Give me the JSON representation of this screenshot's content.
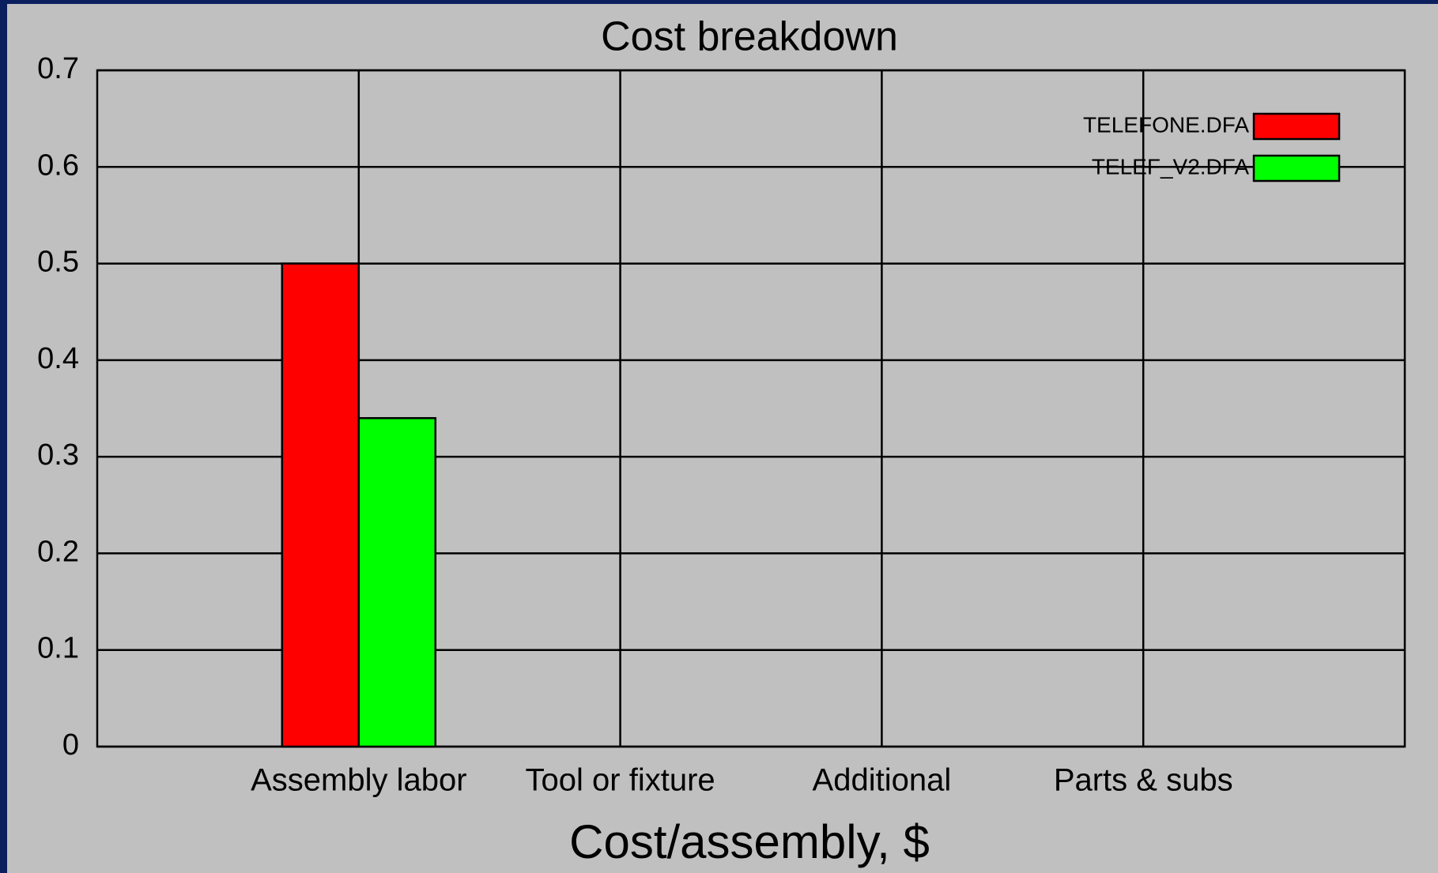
{
  "chart_data": {
    "type": "bar",
    "title": "Cost breakdown",
    "x_label": "Cost/assembly, $",
    "categories": [
      "Assembly labor",
      "Tool or fixture",
      "Additional",
      "Parts & subs"
    ],
    "series": [
      {
        "name": "TELEFONE.DFA",
        "color": "#ff0000",
        "values": [
          0.5,
          0,
          0,
          0
        ]
      },
      {
        "name": "TELEF_V2.DFA",
        "color": "#00ff00",
        "values": [
          0.34,
          0,
          0,
          0
        ]
      }
    ],
    "ylim": [
      0,
      0.7
    ],
    "yticks": [
      0,
      0.1,
      0.2,
      0.3,
      0.4,
      0.5,
      0.6,
      0.7
    ],
    "grid": true,
    "legend": "upper right"
  }
}
